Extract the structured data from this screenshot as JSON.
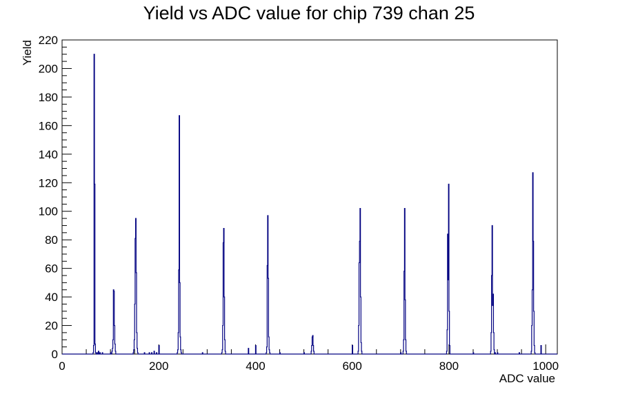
{
  "chart_data": {
    "type": "histogram",
    "title": "Yield vs ADC value for chip 739 chan 25",
    "xlabel": "ADC value",
    "ylabel": "Yield",
    "xlim": [
      0,
      1024
    ],
    "ylim": [
      0,
      220
    ],
    "x_ticks": [
      0,
      200,
      400,
      600,
      800,
      1000
    ],
    "y_ticks": [
      0,
      20,
      40,
      60,
      80,
      100,
      120,
      140,
      160,
      180,
      200,
      220
    ],
    "grid": false,
    "legend": "none",
    "line_color": "#000080",
    "bins": [
      [
        64,
        1
      ],
      [
        65,
        6
      ],
      [
        66,
        210
      ],
      [
        67,
        119
      ],
      [
        68,
        7
      ],
      [
        69,
        1
      ],
      [
        72,
        1
      ],
      [
        75,
        2
      ],
      [
        78,
        1
      ],
      [
        83,
        1
      ],
      [
        100,
        1
      ],
      [
        103,
        2
      ],
      [
        104,
        4
      ],
      [
        105,
        10
      ],
      [
        106,
        45
      ],
      [
        107,
        44
      ],
      [
        108,
        20
      ],
      [
        109,
        7
      ],
      [
        110,
        2
      ],
      [
        147,
        1
      ],
      [
        148,
        3
      ],
      [
        149,
        10
      ],
      [
        150,
        35
      ],
      [
        151,
        81
      ],
      [
        152,
        95
      ],
      [
        153,
        57
      ],
      [
        154,
        15
      ],
      [
        155,
        4
      ],
      [
        156,
        1
      ],
      [
        170,
        1
      ],
      [
        180,
        1
      ],
      [
        185,
        1
      ],
      [
        190,
        2
      ],
      [
        195,
        1
      ],
      [
        200,
        6
      ],
      [
        238,
        1
      ],
      [
        239,
        3
      ],
      [
        240,
        15
      ],
      [
        241,
        59
      ],
      [
        242,
        167
      ],
      [
        243,
        50
      ],
      [
        244,
        12
      ],
      [
        245,
        3
      ],
      [
        246,
        1
      ],
      [
        290,
        1
      ],
      [
        330,
        1
      ],
      [
        331,
        3
      ],
      [
        332,
        20
      ],
      [
        333,
        78
      ],
      [
        334,
        88
      ],
      [
        335,
        40
      ],
      [
        336,
        10
      ],
      [
        337,
        2
      ],
      [
        385,
        4
      ],
      [
        400,
        6
      ],
      [
        422,
        1
      ],
      [
        423,
        5
      ],
      [
        424,
        62
      ],
      [
        425,
        97
      ],
      [
        426,
        53
      ],
      [
        427,
        12
      ],
      [
        428,
        3
      ],
      [
        429,
        1
      ],
      [
        450,
        1
      ],
      [
        500,
        1
      ],
      [
        515,
        2
      ],
      [
        516,
        6
      ],
      [
        517,
        12
      ],
      [
        518,
        13
      ],
      [
        519,
        6
      ],
      [
        520,
        2
      ],
      [
        600,
        6
      ],
      [
        612,
        2
      ],
      [
        613,
        20
      ],
      [
        614,
        64
      ],
      [
        615,
        79
      ],
      [
        616,
        102
      ],
      [
        617,
        40
      ],
      [
        618,
        8
      ],
      [
        619,
        2
      ],
      [
        700,
        1
      ],
      [
        705,
        2
      ],
      [
        706,
        10
      ],
      [
        707,
        58
      ],
      [
        708,
        102
      ],
      [
        709,
        38
      ],
      [
        710,
        10
      ],
      [
        711,
        2
      ],
      [
        795,
        2
      ],
      [
        796,
        17
      ],
      [
        797,
        84
      ],
      [
        798,
        52
      ],
      [
        799,
        119
      ],
      [
        800,
        30
      ],
      [
        801,
        6
      ],
      [
        850,
        1
      ],
      [
        886,
        2
      ],
      [
        887,
        15
      ],
      [
        888,
        55
      ],
      [
        889,
        90
      ],
      [
        890,
        34
      ],
      [
        891,
        42
      ],
      [
        892,
        15
      ],
      [
        893,
        3
      ],
      [
        895,
        1
      ],
      [
        900,
        1
      ],
      [
        945,
        1
      ],
      [
        970,
        2
      ],
      [
        971,
        20
      ],
      [
        972,
        45
      ],
      [
        973,
        127
      ],
      [
        974,
        79
      ],
      [
        975,
        30
      ],
      [
        976,
        6
      ],
      [
        977,
        1
      ],
      [
        990,
        6
      ]
    ]
  }
}
